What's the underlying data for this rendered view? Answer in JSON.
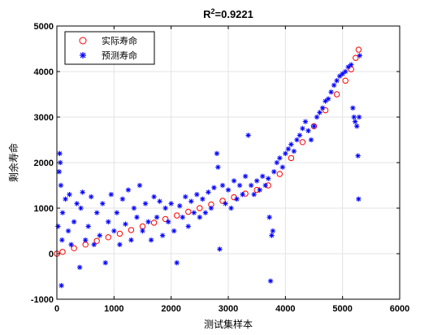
{
  "chart_data": {
    "type": "scatter",
    "title_base": "R",
    "title_sup": "2",
    "title_rest": "=0.9221",
    "xlabel": "测试集样本",
    "ylabel": "剩余寿命",
    "xlim": [
      0,
      6000
    ],
    "ylim": [
      -1000,
      5000
    ],
    "xticks": [
      "0",
      "1000",
      "2000",
      "3000",
      "4000",
      "5000",
      "6000"
    ],
    "yticks": [
      "-1000",
      "0",
      "1000",
      "2000",
      "3000",
      "4000",
      "5000"
    ],
    "grid": true,
    "legend_position": "top-left",
    "series": [
      {
        "name": "实际寿命",
        "marker": "circle",
        "color": "#ff0000",
        "points": [
          [
            0,
            0
          ],
          [
            100,
            40
          ],
          [
            300,
            120
          ],
          [
            500,
            200
          ],
          [
            700,
            280
          ],
          [
            900,
            360
          ],
          [
            1100,
            440
          ],
          [
            1300,
            520
          ],
          [
            1500,
            600
          ],
          [
            1700,
            680
          ],
          [
            1900,
            760
          ],
          [
            2100,
            840
          ],
          [
            2300,
            920
          ],
          [
            2500,
            1000
          ],
          [
            2700,
            1080
          ],
          [
            2900,
            1160
          ],
          [
            3100,
            1240
          ],
          [
            3300,
            1320
          ],
          [
            3500,
            1400
          ],
          [
            3700,
            1500
          ],
          [
            3900,
            1750
          ],
          [
            4100,
            2100
          ],
          [
            4300,
            2450
          ],
          [
            4500,
            2800
          ],
          [
            4700,
            3150
          ],
          [
            4900,
            3500
          ],
          [
            5050,
            3800
          ],
          [
            5150,
            4050
          ],
          [
            5230,
            4300
          ],
          [
            5280,
            4480
          ]
        ]
      },
      {
        "name": "预测寿命",
        "marker": "asterisk",
        "color": "#0000ff",
        "points": [
          [
            20,
            600
          ],
          [
            40,
            1800
          ],
          [
            50,
            2200
          ],
          [
            60,
            2000
          ],
          [
            70,
            1500
          ],
          [
            80,
            -700
          ],
          [
            90,
            300
          ],
          [
            100,
            900
          ],
          [
            150,
            1200
          ],
          [
            200,
            500
          ],
          [
            220,
            1300
          ],
          [
            250,
            200
          ],
          [
            300,
            700
          ],
          [
            350,
            1100
          ],
          [
            400,
            -300
          ],
          [
            420,
            1000
          ],
          [
            450,
            1350
          ],
          [
            500,
            300
          ],
          [
            550,
            600
          ],
          [
            600,
            1250
          ],
          [
            650,
            200
          ],
          [
            700,
            900
          ],
          [
            750,
            400
          ],
          [
            800,
            1100
          ],
          [
            850,
            -200
          ],
          [
            900,
            700
          ],
          [
            950,
            1300
          ],
          [
            1000,
            500
          ],
          [
            1050,
            900
          ],
          [
            1100,
            200
          ],
          [
            1150,
            1200
          ],
          [
            1200,
            650
          ],
          [
            1250,
            1400
          ],
          [
            1300,
            300
          ],
          [
            1350,
            1000
          ],
          [
            1400,
            800
          ],
          [
            1450,
            1500
          ],
          [
            1500,
            500
          ],
          [
            1550,
            1100
          ],
          [
            1600,
            700
          ],
          [
            1650,
            300
          ],
          [
            1700,
            1250
          ],
          [
            1750,
            800
          ],
          [
            1800,
            1150
          ],
          [
            1850,
            400
          ],
          [
            1900,
            1000
          ],
          [
            1950,
            700
          ],
          [
            2000,
            1100
          ],
          [
            2050,
            500
          ],
          [
            2100,
            -200
          ],
          [
            2150,
            1050
          ],
          [
            2200,
            800
          ],
          [
            2250,
            1250
          ],
          [
            2300,
            600
          ],
          [
            2350,
            1150
          ],
          [
            2400,
            900
          ],
          [
            2450,
            1300
          ],
          [
            2500,
            800
          ],
          [
            2550,
            1200
          ],
          [
            2600,
            900
          ],
          [
            2650,
            1350
          ],
          [
            2700,
            1000
          ],
          [
            2750,
            1450
          ],
          [
            2800,
            2200
          ],
          [
            2820,
            1900
          ],
          [
            2850,
            100
          ],
          [
            2900,
            1500
          ],
          [
            2950,
            1100
          ],
          [
            3000,
            1400
          ],
          [
            3050,
            1000
          ],
          [
            3100,
            1600
          ],
          [
            3150,
            1200
          ],
          [
            3200,
            1500
          ],
          [
            3250,
            1300
          ],
          [
            3300,
            1700
          ],
          [
            3350,
            2600
          ],
          [
            3400,
            1500
          ],
          [
            3450,
            1300
          ],
          [
            3500,
            1600
          ],
          [
            3550,
            1400
          ],
          [
            3600,
            1700
          ],
          [
            3650,
            1500
          ],
          [
            3700,
            1650
          ],
          [
            3720,
            800
          ],
          [
            3740,
            -600
          ],
          [
            3760,
            400
          ],
          [
            3780,
            500
          ],
          [
            3800,
            1800
          ],
          [
            3850,
            2000
          ],
          [
            3900,
            2100
          ],
          [
            3950,
            1900
          ],
          [
            4000,
            2200
          ],
          [
            4050,
            2300
          ],
          [
            4100,
            2400
          ],
          [
            4150,
            2250
          ],
          [
            4200,
            2500
          ],
          [
            4250,
            2600
          ],
          [
            4300,
            2750
          ],
          [
            4350,
            2900
          ],
          [
            4400,
            2700
          ],
          [
            4450,
            2500
          ],
          [
            4500,
            2800
          ],
          [
            4550,
            3000
          ],
          [
            4600,
            3100
          ],
          [
            4650,
            3200
          ],
          [
            4700,
            3350
          ],
          [
            4750,
            3400
          ],
          [
            4800,
            3550
          ],
          [
            4850,
            3700
          ],
          [
            4900,
            3800
          ],
          [
            4950,
            3900
          ],
          [
            5000,
            3950
          ],
          [
            5050,
            4000
          ],
          [
            5100,
            4100
          ],
          [
            5150,
            4150
          ],
          [
            5180,
            3200
          ],
          [
            5200,
            3000
          ],
          [
            5220,
            2900
          ],
          [
            5250,
            2800
          ],
          [
            5270,
            2150
          ],
          [
            5280,
            1200
          ],
          [
            5290,
            3000
          ],
          [
            5300,
            4350
          ]
        ]
      }
    ]
  },
  "colors": {
    "grid": "#e3e3e3",
    "axis": "#000000",
    "actual": "#ff0000",
    "predicted": "#0000ff"
  }
}
